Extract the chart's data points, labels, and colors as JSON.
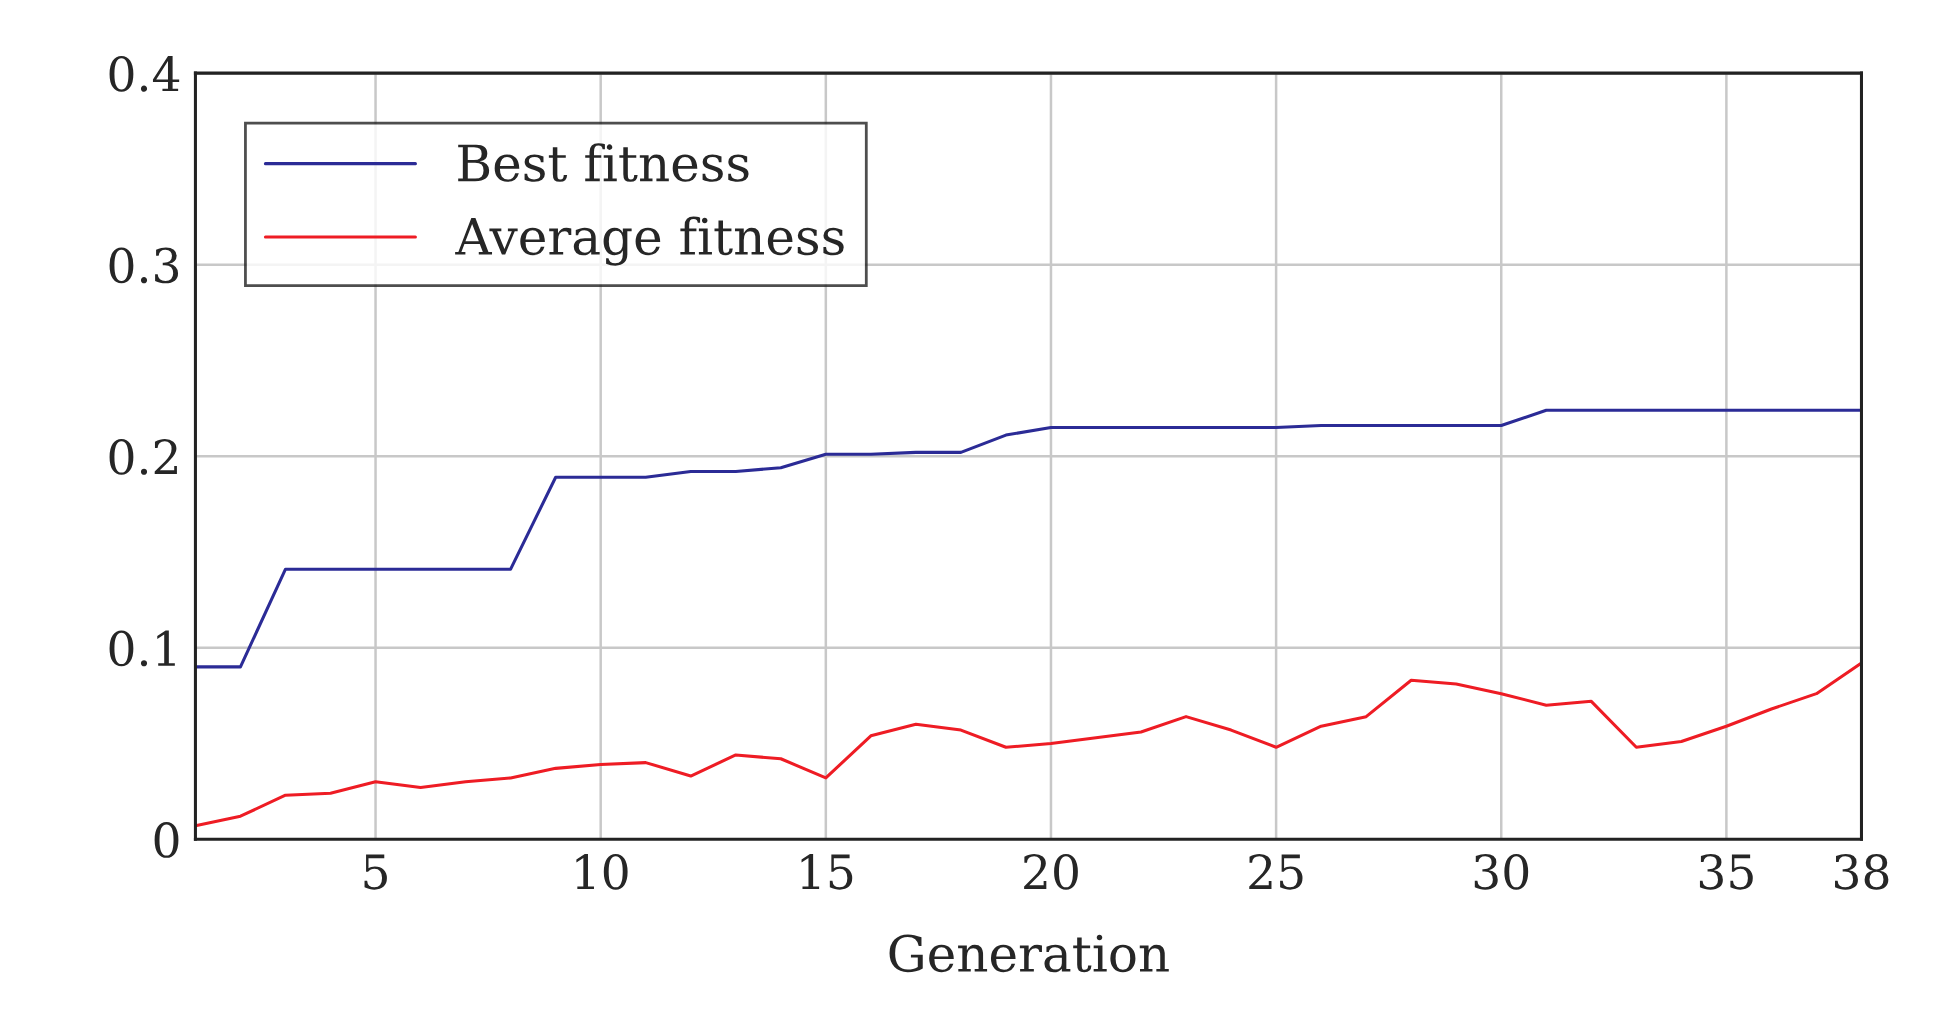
{
  "chart_data": {
    "type": "line",
    "xlabel": "Generation",
    "x": [
      1,
      2,
      3,
      4,
      5,
      6,
      7,
      8,
      9,
      10,
      11,
      12,
      13,
      14,
      15,
      16,
      17,
      18,
      19,
      20,
      21,
      22,
      23,
      24,
      25,
      26,
      27,
      28,
      29,
      30,
      31,
      32,
      33,
      34,
      35,
      36,
      37,
      38
    ],
    "series": [
      {
        "name": "Best fitness",
        "color": "#2b2b96",
        "values": [
          0.09,
          0.09,
          0.141,
          0.141,
          0.141,
          0.141,
          0.141,
          0.141,
          0.189,
          0.189,
          0.189,
          0.192,
          0.192,
          0.194,
          0.201,
          0.201,
          0.202,
          0.202,
          0.211,
          0.215,
          0.215,
          0.215,
          0.215,
          0.215,
          0.215,
          0.216,
          0.216,
          0.216,
          0.216,
          0.216,
          0.224,
          0.224,
          0.224,
          0.224,
          0.224,
          0.224,
          0.224,
          0.224
        ]
      },
      {
        "name": "Average fitness",
        "color": "#ee1c24",
        "values": [
          0.007,
          0.012,
          0.023,
          0.024,
          0.03,
          0.027,
          0.03,
          0.032,
          0.037,
          0.039,
          0.04,
          0.033,
          0.044,
          0.042,
          0.032,
          0.054,
          0.06,
          0.057,
          0.048,
          0.05,
          0.053,
          0.056,
          0.064,
          0.057,
          0.048,
          0.059,
          0.064,
          0.083,
          0.081,
          0.076,
          0.07,
          0.072,
          0.048,
          0.051,
          0.059,
          0.068,
          0.076,
          0.092
        ]
      }
    ],
    "xlim": [
      1,
      38
    ],
    "xticks": [
      5,
      10,
      15,
      20,
      25,
      30,
      35,
      38
    ],
    "ylim": [
      0,
      0.4
    ],
    "yticks": [
      0,
      0.1,
      0.2,
      0.3,
      0.4
    ],
    "grid": true,
    "legend": "top left",
    "marker": "none",
    "line_style": "solid"
  }
}
